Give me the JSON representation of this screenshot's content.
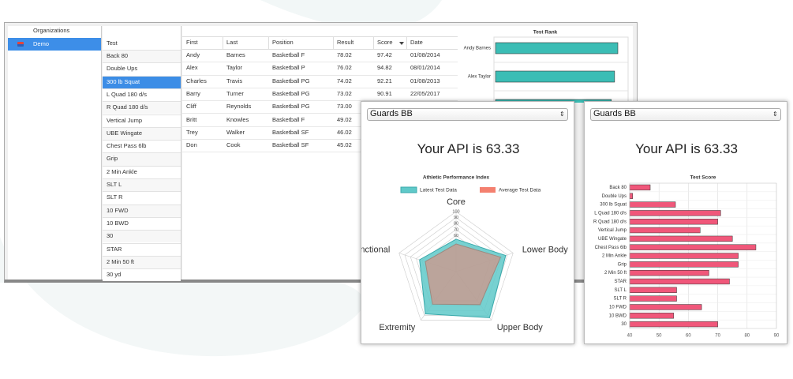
{
  "organizations": {
    "header": "Organizations",
    "items": [
      "Demo"
    ],
    "selected": 0
  },
  "tests": {
    "header": "Test",
    "selected": 2,
    "items": [
      "Back 80",
      "Double Ups",
      "300 lb Squat",
      "L Quad 180 d/s",
      "R Quad 180 d/s",
      "Vertical Jump",
      "UBE Wingate",
      "Chest Pass 6lb",
      "Grip",
      "2 Min Ankle",
      "SLT L",
      "SLT R",
      "10 FWD",
      "10 BWD",
      "30",
      "STAR",
      "2 Min 50 ft",
      "30 yd"
    ]
  },
  "results_table": {
    "columns": [
      "First",
      "Last",
      "Position",
      "Result",
      "Score",
      "Date"
    ],
    "rows": [
      [
        "Andy",
        "Barnes",
        "Basketball F",
        "78.02",
        "97.42",
        "01/08/2014"
      ],
      [
        "Alex",
        "Taylor",
        "Basketball P",
        "76.02",
        "94.82",
        "08/01/2014"
      ],
      [
        "Charles",
        "Travis",
        "Basketball PG",
        "74.02",
        "92.21",
        "01/08/2013"
      ],
      [
        "Barry",
        "Turner",
        "Basketball PG",
        "73.02",
        "90.91",
        "22/05/2017"
      ],
      [
        "Cliff",
        "Reynolds",
        "Basketball PG",
        "73.00"
      ],
      [
        "Britt",
        "Knowles",
        "Basketball F",
        "49.02"
      ],
      [
        "Trey",
        "Walker",
        "Basketball SF",
        "46.02"
      ],
      [
        "Don",
        "Cook",
        "Basketball SF",
        "45.02"
      ]
    ]
  },
  "panels": [
    {
      "select": "Guards BB",
      "api_text": "Your API is 63.33"
    },
    {
      "select": "Guards BB",
      "api_text": "Your API is 63.33"
    }
  ],
  "chart_data": [
    {
      "type": "bar",
      "orientation": "horizontal",
      "title": "Test Rank",
      "categories": [
        "Andy Barnes",
        "Alex Taylor",
        null
      ],
      "values": [
        97.42,
        94.82,
        92.21
      ],
      "color": "#3bbdb5"
    },
    {
      "type": "radar",
      "title": "Athletic Performance Index",
      "categories": [
        "Core",
        "Lower Body",
        "Upper Body",
        "Extremity",
        "Functional"
      ],
      "series": [
        {
          "name": "Latest Test Data",
          "color": "#5fc9c9",
          "values": [
            54,
            87,
            95,
            87,
            64
          ]
        },
        {
          "name": "Average Test Data",
          "color": "#f4806f",
          "values": [
            46,
            78,
            68,
            67,
            54
          ]
        }
      ],
      "rlim": [
        0,
        100
      ],
      "rticks": [
        60,
        70,
        80,
        90,
        100
      ]
    },
    {
      "type": "bar",
      "orientation": "horizontal",
      "title": "Test Score",
      "categories": [
        "Back 80",
        "Double Ups",
        "300 lb Squat",
        "L Quad 180 d/s",
        "R Quad 180 d/s",
        "Vertical Jump",
        "UBE Wingate",
        "Chest Pass 6lb",
        "2 Min Ankle",
        "Grip",
        "2 Min 50 ft",
        "STAR",
        "SLT L",
        "SLT R",
        "10 FWD",
        "10 BWD",
        "30"
      ],
      "values": [
        47,
        41,
        55.6,
        71,
        70,
        64,
        75,
        83,
        77,
        77,
        67,
        74,
        56,
        56,
        64.5,
        55,
        70
      ],
      "color": "#f0577a",
      "xlim": [
        40,
        90
      ],
      "xticks": [
        40,
        50,
        60,
        70,
        80,
        90
      ],
      "grid": true
    }
  ]
}
